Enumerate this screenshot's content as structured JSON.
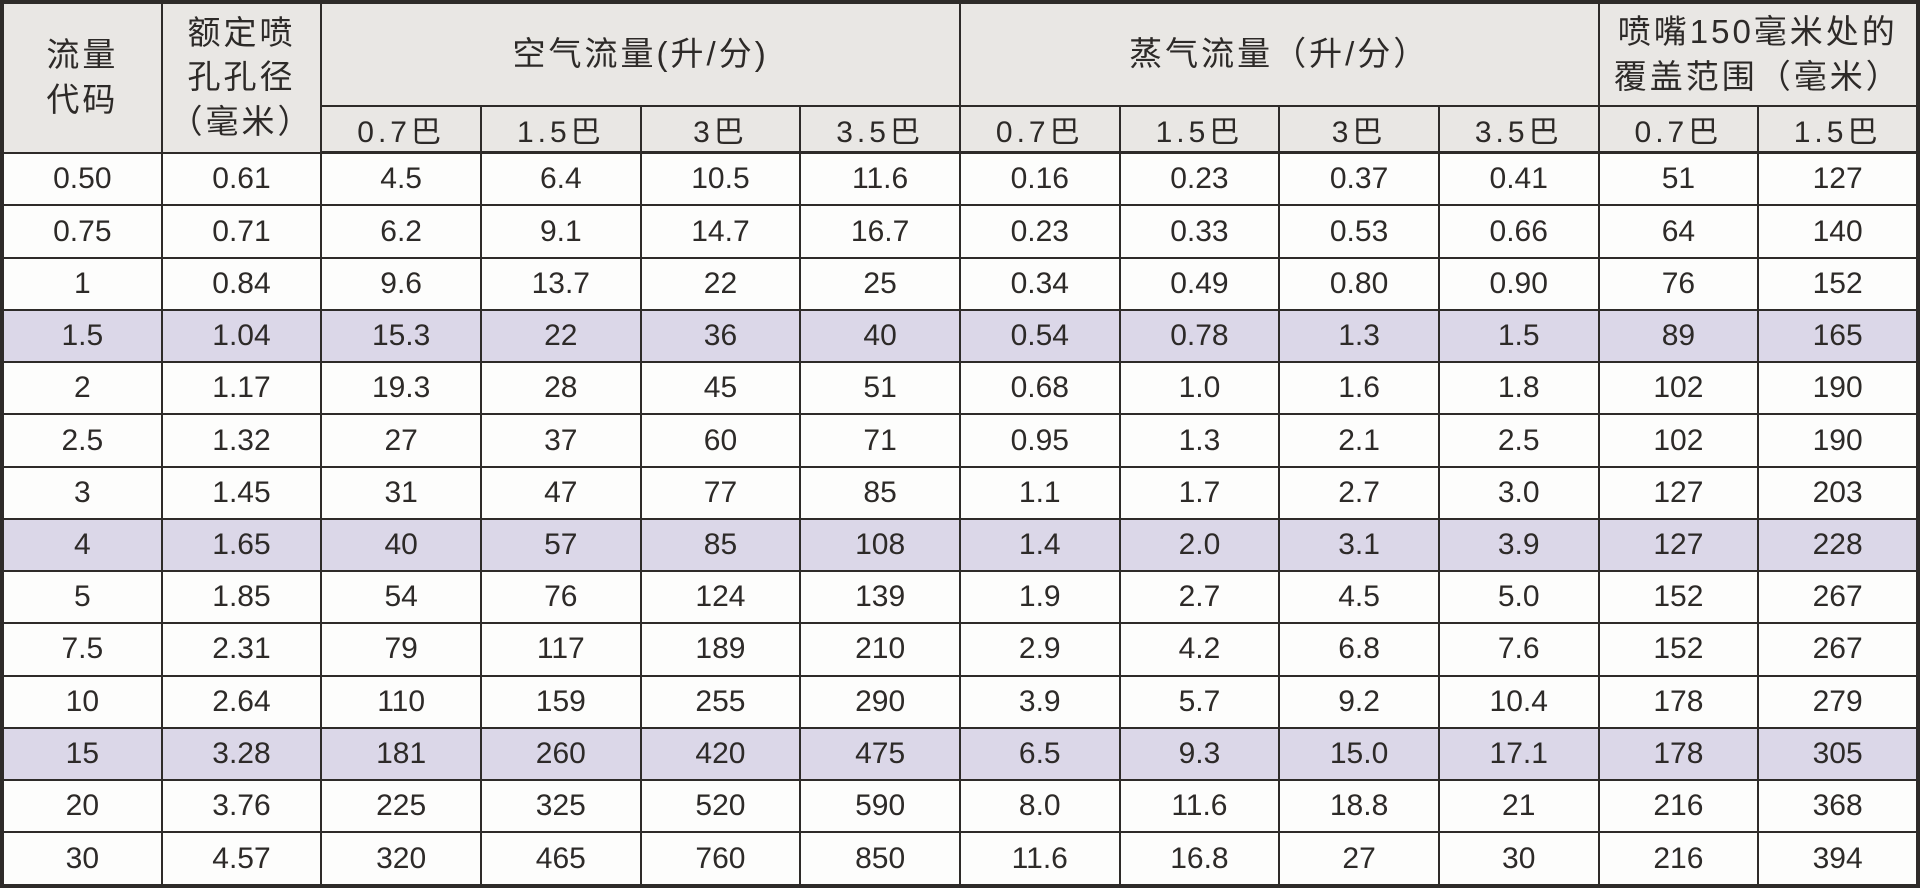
{
  "table": {
    "title_semantic": "nozzle-flow-specification-table",
    "colors": {
      "header_bg": "#e9e7e4",
      "row_bg": "#fdfdfc",
      "highlight_row_bg": "#dbd7e8",
      "border": "#2e2b29",
      "text": "#2d2a28"
    },
    "group_headers": {
      "flow_code": "流量\n代码",
      "orifice_diameter": "额定喷\n孔孔径\n（毫米）",
      "air_flow": "空气流量(升/分)",
      "steam_flow": "蒸气流量（升/分）",
      "coverage": "喷嘴150毫米处的\n覆盖范围（毫米）"
    },
    "pressure_headers": [
      "0.7巴",
      "1.5巴",
      "3巴",
      "3.5巴",
      "0.7巴",
      "1.5巴",
      "3巴",
      "3.5巴",
      "0.7巴",
      "1.5巴"
    ],
    "rows": [
      {
        "highlighted": false,
        "cells": [
          "0.50",
          "0.61",
          "4.5",
          "6.4",
          "10.5",
          "11.6",
          "0.16",
          "0.23",
          "0.37",
          "0.41",
          "51",
          "127"
        ]
      },
      {
        "highlighted": false,
        "cells": [
          "0.75",
          "0.71",
          "6.2",
          "9.1",
          "14.7",
          "16.7",
          "0.23",
          "0.33",
          "0.53",
          "0.66",
          "64",
          "140"
        ]
      },
      {
        "highlighted": false,
        "cells": [
          "1",
          "0.84",
          "9.6",
          "13.7",
          "22",
          "25",
          "0.34",
          "0.49",
          "0.80",
          "0.90",
          "76",
          "152"
        ]
      },
      {
        "highlighted": true,
        "cells": [
          "1.5",
          "1.04",
          "15.3",
          "22",
          "36",
          "40",
          "0.54",
          "0.78",
          "1.3",
          "1.5",
          "89",
          "165"
        ]
      },
      {
        "highlighted": false,
        "cells": [
          "2",
          "1.17",
          "19.3",
          "28",
          "45",
          "51",
          "0.68",
          "1.0",
          "1.6",
          "1.8",
          "102",
          "190"
        ]
      },
      {
        "highlighted": false,
        "cells": [
          "2.5",
          "1.32",
          "27",
          "37",
          "60",
          "71",
          "0.95",
          "1.3",
          "2.1",
          "2.5",
          "102",
          "190"
        ]
      },
      {
        "highlighted": false,
        "cells": [
          "3",
          "1.45",
          "31",
          "47",
          "77",
          "85",
          "1.1",
          "1.7",
          "2.7",
          "3.0",
          "127",
          "203"
        ]
      },
      {
        "highlighted": true,
        "cells": [
          "4",
          "1.65",
          "40",
          "57",
          "85",
          "108",
          "1.4",
          "2.0",
          "3.1",
          "3.9",
          "127",
          "228"
        ]
      },
      {
        "highlighted": false,
        "cells": [
          "5",
          "1.85",
          "54",
          "76",
          "124",
          "139",
          "1.9",
          "2.7",
          "4.5",
          "5.0",
          "152",
          "267"
        ]
      },
      {
        "highlighted": false,
        "cells": [
          "7.5",
          "2.31",
          "79",
          "117",
          "189",
          "210",
          "2.9",
          "4.2",
          "6.8",
          "7.6",
          "152",
          "267"
        ]
      },
      {
        "highlighted": false,
        "cells": [
          "10",
          "2.64",
          "110",
          "159",
          "255",
          "290",
          "3.9",
          "5.7",
          "9.2",
          "10.4",
          "178",
          "279"
        ]
      },
      {
        "highlighted": true,
        "cells": [
          "15",
          "3.28",
          "181",
          "260",
          "420",
          "475",
          "6.5",
          "9.3",
          "15.0",
          "17.1",
          "178",
          "305"
        ]
      },
      {
        "highlighted": false,
        "cells": [
          "20",
          "3.76",
          "225",
          "325",
          "520",
          "590",
          "8.0",
          "11.6",
          "18.8",
          "21",
          "216",
          "368"
        ]
      },
      {
        "highlighted": false,
        "cells": [
          "30",
          "4.57",
          "320",
          "465",
          "760",
          "850",
          "11.6",
          "16.8",
          "27",
          "30",
          "216",
          "394"
        ]
      }
    ]
  }
}
